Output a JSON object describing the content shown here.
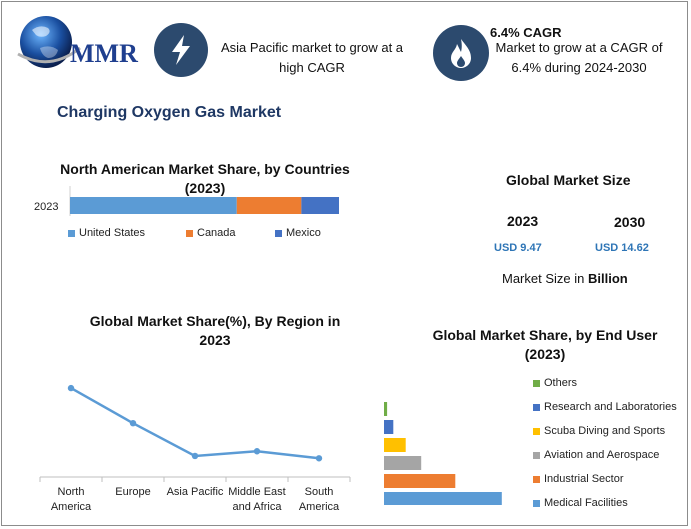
{
  "header": {
    "logo_text": "MMR",
    "info1": {
      "icon": "lightning-icon",
      "text": "Asia Pacific market to grow at a high CAGR"
    },
    "info2": {
      "icon": "flame-icon",
      "title": "6.4% CAGR",
      "text": "Market to grow at a CAGR of 6.4% during 2024-2030"
    }
  },
  "page_title": "Charging Oxygen Gas Market",
  "global_market_size": {
    "title": "Global Market Size",
    "year_a": "2023",
    "value_a": "USD 9.47",
    "year_b": "2030",
    "value_b": "USD 14.62",
    "note_prefix": "Market Size in ",
    "note_unit": "Billion"
  },
  "colors": {
    "accent": "#2e75b6",
    "title": "#1f3864",
    "icon_bg": "#2c4a6e"
  },
  "chart_data": [
    {
      "type": "bar",
      "orientation": "horizontal-stacked",
      "title": "North American Market Share, by Countries (2023)",
      "categories": [
        "2023"
      ],
      "series": [
        {
          "name": "United States",
          "values": [
            62
          ],
          "color": "#5b9bd5"
        },
        {
          "name": "Canada",
          "values": [
            24
          ],
          "color": "#ed7d31"
        },
        {
          "name": "Mexico",
          "values": [
            14
          ],
          "color": "#4472c4"
        }
      ],
      "xlim": [
        0,
        100
      ],
      "legend": "bottom"
    },
    {
      "type": "line",
      "title": "Global Market Share(%), By Region in 2023",
      "categories": [
        "North America",
        "Europe",
        "Asia Pacific",
        "Middle East and Africa",
        "South America"
      ],
      "values": [
        38,
        23,
        9,
        11,
        8
      ],
      "ylim": [
        0,
        50
      ],
      "grid": false,
      "color": "#5b9bd5"
    },
    {
      "type": "bar",
      "orientation": "horizontal",
      "title": "Global Market Share, by End User (2023)",
      "categories": [
        "Others",
        "Research and Laboratories",
        "Scuba Diving and Sports",
        "Aviation and Aerospace",
        "Industrial Sector",
        "Medical Facilities"
      ],
      "values": [
        1,
        3,
        7,
        12,
        23,
        38
      ],
      "colors": [
        "#70ad47",
        "#4472c4",
        "#ffc000",
        "#a5a5a5",
        "#ed7d31",
        "#5b9bd5"
      ],
      "xlim": [
        0,
        100
      ],
      "legend": "right"
    }
  ]
}
